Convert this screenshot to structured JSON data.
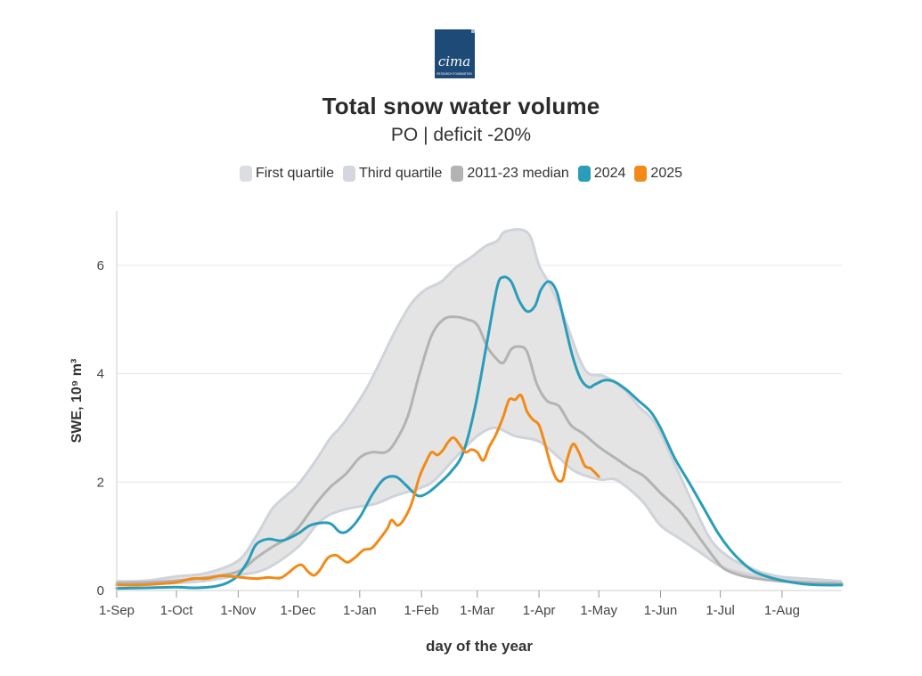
{
  "logo": {
    "text": "cima",
    "subtext": "RESEARCH FOUNDATION",
    "color": "#1e4a78"
  },
  "header": {
    "title": "Total snow water volume",
    "subtitle": "PO | deficit -20%"
  },
  "legend": [
    {
      "label": "First quartile",
      "color": "#dcdde1"
    },
    {
      "label": "Third quartile",
      "color": "#d4d7dd"
    },
    {
      "label": "2011-23 median",
      "color": "#b3b3b3"
    },
    {
      "label": "2024",
      "color": "#2a9db8"
    },
    {
      "label": "2025",
      "color": "#f28a17"
    }
  ],
  "chart_data": {
    "type": "line",
    "xlabel": "day of the year",
    "ylabel": "SWE, 10⁹ m³",
    "x_unit": "days since 1-Sep",
    "x_ticks": [
      {
        "day": 0,
        "label": "1-Sep"
      },
      {
        "day": 30,
        "label": "1-Oct"
      },
      {
        "day": 61,
        "label": "1-Nov"
      },
      {
        "day": 91,
        "label": "1-Dec"
      },
      {
        "day": 122,
        "label": "1-Jan"
      },
      {
        "day": 153,
        "label": "1-Feb"
      },
      {
        "day": 181,
        "label": "1-Mar"
      },
      {
        "day": 212,
        "label": "1-Apr"
      },
      {
        "day": 242,
        "label": "1-May"
      },
      {
        "day": 273,
        "label": "1-Jun"
      },
      {
        "day": 303,
        "label": "1-Jul"
      },
      {
        "day": 334,
        "label": "1-Aug"
      }
    ],
    "xlim": [
      0,
      364
    ],
    "ylim": [
      0,
      7
    ],
    "y_ticks": [
      0,
      2,
      4,
      6
    ],
    "grid": true,
    "band": {
      "name": "First quartile / Third quartile",
      "lower": [
        [
          0,
          0.12
        ],
        [
          15,
          0.12
        ],
        [
          30,
          0.14
        ],
        [
          45,
          0.18
        ],
        [
          61,
          0.28
        ],
        [
          75,
          0.4
        ],
        [
          91,
          0.8
        ],
        [
          100,
          1.2
        ],
        [
          107,
          1.4
        ],
        [
          115,
          1.5
        ],
        [
          122,
          1.55
        ],
        [
          130,
          1.6
        ],
        [
          140,
          1.75
        ],
        [
          153,
          1.9
        ],
        [
          160,
          2.05
        ],
        [
          170,
          2.45
        ],
        [
          181,
          2.85
        ],
        [
          190,
          3.0
        ],
        [
          200,
          2.85
        ],
        [
          212,
          2.75
        ],
        [
          222,
          2.45
        ],
        [
          230,
          2.2
        ],
        [
          242,
          2.05
        ],
        [
          250,
          2.05
        ],
        [
          258,
          1.85
        ],
        [
          265,
          1.6
        ],
        [
          273,
          1.2
        ],
        [
          283,
          0.95
        ],
        [
          293,
          0.7
        ],
        [
          303,
          0.45
        ],
        [
          314,
          0.32
        ],
        [
          325,
          0.24
        ],
        [
          334,
          0.2
        ],
        [
          345,
          0.16
        ],
        [
          364,
          0.13
        ]
      ],
      "upper": [
        [
          0,
          0.17
        ],
        [
          15,
          0.18
        ],
        [
          30,
          0.26
        ],
        [
          45,
          0.32
        ],
        [
          61,
          0.55
        ],
        [
          70,
          1.0
        ],
        [
          78,
          1.5
        ],
        [
          85,
          1.75
        ],
        [
          91,
          1.95
        ],
        [
          100,
          2.4
        ],
        [
          107,
          2.8
        ],
        [
          112,
          3.0
        ],
        [
          118,
          3.3
        ],
        [
          125,
          3.7
        ],
        [
          132,
          4.2
        ],
        [
          140,
          4.8
        ],
        [
          148,
          5.3
        ],
        [
          155,
          5.55
        ],
        [
          163,
          5.7
        ],
        [
          170,
          5.95
        ],
        [
          178,
          6.15
        ],
        [
          185,
          6.35
        ],
        [
          191,
          6.45
        ],
        [
          194,
          6.6
        ],
        [
          198,
          6.65
        ],
        [
          204,
          6.65
        ],
        [
          208,
          6.5
        ],
        [
          212,
          6.0
        ],
        [
          218,
          5.6
        ],
        [
          225,
          5.0
        ],
        [
          232,
          4.3
        ],
        [
          237,
          4.0
        ],
        [
          245,
          3.95
        ],
        [
          255,
          3.7
        ],
        [
          262,
          3.4
        ],
        [
          270,
          3.1
        ],
        [
          278,
          2.5
        ],
        [
          288,
          1.7
        ],
        [
          298,
          0.95
        ],
        [
          308,
          0.6
        ],
        [
          318,
          0.42
        ],
        [
          325,
          0.32
        ],
        [
          334,
          0.25
        ],
        [
          345,
          0.22
        ],
        [
          364,
          0.17
        ]
      ]
    },
    "series": [
      {
        "name": "2011-23 median",
        "color": "#b3b3b3",
        "points": [
          [
            0,
            0.14
          ],
          [
            15,
            0.15
          ],
          [
            30,
            0.18
          ],
          [
            45,
            0.24
          ],
          [
            61,
            0.35
          ],
          [
            70,
            0.6
          ],
          [
            78,
            0.8
          ],
          [
            85,
            0.95
          ],
          [
            91,
            1.15
          ],
          [
            100,
            1.6
          ],
          [
            107,
            1.9
          ],
          [
            115,
            2.15
          ],
          [
            122,
            2.45
          ],
          [
            128,
            2.55
          ],
          [
            135,
            2.55
          ],
          [
            140,
            2.75
          ],
          [
            146,
            3.2
          ],
          [
            152,
            4.0
          ],
          [
            158,
            4.7
          ],
          [
            164,
            5.0
          ],
          [
            170,
            5.05
          ],
          [
            176,
            5.0
          ],
          [
            181,
            4.9
          ],
          [
            186,
            4.5
          ],
          [
            190,
            4.3
          ],
          [
            194,
            4.2
          ],
          [
            198,
            4.45
          ],
          [
            202,
            4.5
          ],
          [
            206,
            4.4
          ],
          [
            211,
            3.8
          ],
          [
            216,
            3.5
          ],
          [
            222,
            3.4
          ],
          [
            228,
            3.05
          ],
          [
            234,
            2.9
          ],
          [
            242,
            2.65
          ],
          [
            250,
            2.45
          ],
          [
            258,
            2.25
          ],
          [
            265,
            2.1
          ],
          [
            273,
            1.8
          ],
          [
            283,
            1.45
          ],
          [
            293,
            0.95
          ],
          [
            300,
            0.6
          ],
          [
            305,
            0.4
          ],
          [
            314,
            0.27
          ],
          [
            325,
            0.2
          ],
          [
            334,
            0.17
          ],
          [
            345,
            0.15
          ],
          [
            364,
            0.13
          ]
        ]
      },
      {
        "name": "2024",
        "color": "#2a9db8",
        "points": [
          [
            0,
            0.04
          ],
          [
            15,
            0.05
          ],
          [
            30,
            0.06
          ],
          [
            40,
            0.05
          ],
          [
            50,
            0.08
          ],
          [
            56,
            0.15
          ],
          [
            61,
            0.28
          ],
          [
            66,
            0.55
          ],
          [
            70,
            0.85
          ],
          [
            76,
            0.95
          ],
          [
            83,
            0.92
          ],
          [
            91,
            1.05
          ],
          [
            97,
            1.2
          ],
          [
            104,
            1.25
          ],
          [
            108,
            1.22
          ],
          [
            112,
            1.08
          ],
          [
            116,
            1.1
          ],
          [
            122,
            1.35
          ],
          [
            128,
            1.75
          ],
          [
            134,
            2.05
          ],
          [
            140,
            2.1
          ],
          [
            145,
            1.95
          ],
          [
            151,
            1.75
          ],
          [
            156,
            1.8
          ],
          [
            162,
            1.98
          ],
          [
            168,
            2.2
          ],
          [
            174,
            2.55
          ],
          [
            180,
            3.4
          ],
          [
            186,
            4.6
          ],
          [
            191,
            5.6
          ],
          [
            194,
            5.78
          ],
          [
            198,
            5.7
          ],
          [
            202,
            5.35
          ],
          [
            206,
            5.15
          ],
          [
            210,
            5.25
          ],
          [
            213,
            5.55
          ],
          [
            217,
            5.7
          ],
          [
            221,
            5.5
          ],
          [
            225,
            4.9
          ],
          [
            229,
            4.3
          ],
          [
            233,
            3.9
          ],
          [
            237,
            3.75
          ],
          [
            240,
            3.8
          ],
          [
            245,
            3.88
          ],
          [
            250,
            3.85
          ],
          [
            256,
            3.7
          ],
          [
            262,
            3.5
          ],
          [
            268,
            3.3
          ],
          [
            273,
            3.0
          ],
          [
            280,
            2.45
          ],
          [
            288,
            1.95
          ],
          [
            295,
            1.5
          ],
          [
            302,
            1.05
          ],
          [
            308,
            0.75
          ],
          [
            314,
            0.52
          ],
          [
            320,
            0.35
          ],
          [
            328,
            0.24
          ],
          [
            336,
            0.17
          ],
          [
            345,
            0.12
          ],
          [
            355,
            0.1
          ],
          [
            364,
            0.1
          ]
        ]
      },
      {
        "name": "2025",
        "color": "#f28a17",
        "points": [
          [
            0,
            0.1
          ],
          [
            10,
            0.1
          ],
          [
            20,
            0.12
          ],
          [
            30,
            0.15
          ],
          [
            38,
            0.22
          ],
          [
            45,
            0.22
          ],
          [
            52,
            0.27
          ],
          [
            58,
            0.26
          ],
          [
            63,
            0.24
          ],
          [
            70,
            0.22
          ],
          [
            76,
            0.24
          ],
          [
            82,
            0.23
          ],
          [
            86,
            0.32
          ],
          [
            90,
            0.44
          ],
          [
            93,
            0.47
          ],
          [
            96,
            0.35
          ],
          [
            99,
            0.28
          ],
          [
            102,
            0.38
          ],
          [
            106,
            0.6
          ],
          [
            110,
            0.65
          ],
          [
            113,
            0.58
          ],
          [
            116,
            0.52
          ],
          [
            120,
            0.62
          ],
          [
            124,
            0.75
          ],
          [
            128,
            0.78
          ],
          [
            132,
            0.95
          ],
          [
            136,
            1.15
          ],
          [
            138,
            1.3
          ],
          [
            141,
            1.2
          ],
          [
            144,
            1.3
          ],
          [
            148,
            1.6
          ],
          [
            152,
            2.1
          ],
          [
            155,
            2.35
          ],
          [
            158,
            2.55
          ],
          [
            161,
            2.5
          ],
          [
            164,
            2.6
          ],
          [
            166,
            2.72
          ],
          [
            169,
            2.82
          ],
          [
            172,
            2.7
          ],
          [
            175,
            2.55
          ],
          [
            178,
            2.6
          ],
          [
            181,
            2.55
          ],
          [
            184,
            2.4
          ],
          [
            187,
            2.65
          ],
          [
            190,
            2.85
          ],
          [
            194,
            3.2
          ],
          [
            197,
            3.52
          ],
          [
            200,
            3.52
          ],
          [
            203,
            3.6
          ],
          [
            206,
            3.3
          ],
          [
            209,
            3.15
          ],
          [
            212,
            3.05
          ],
          [
            215,
            2.7
          ],
          [
            218,
            2.3
          ],
          [
            221,
            2.05
          ],
          [
            224,
            2.05
          ],
          [
            226,
            2.4
          ],
          [
            229,
            2.7
          ],
          [
            232,
            2.55
          ],
          [
            235,
            2.3
          ],
          [
            238,
            2.25
          ],
          [
            242,
            2.1
          ]
        ]
      }
    ]
  }
}
